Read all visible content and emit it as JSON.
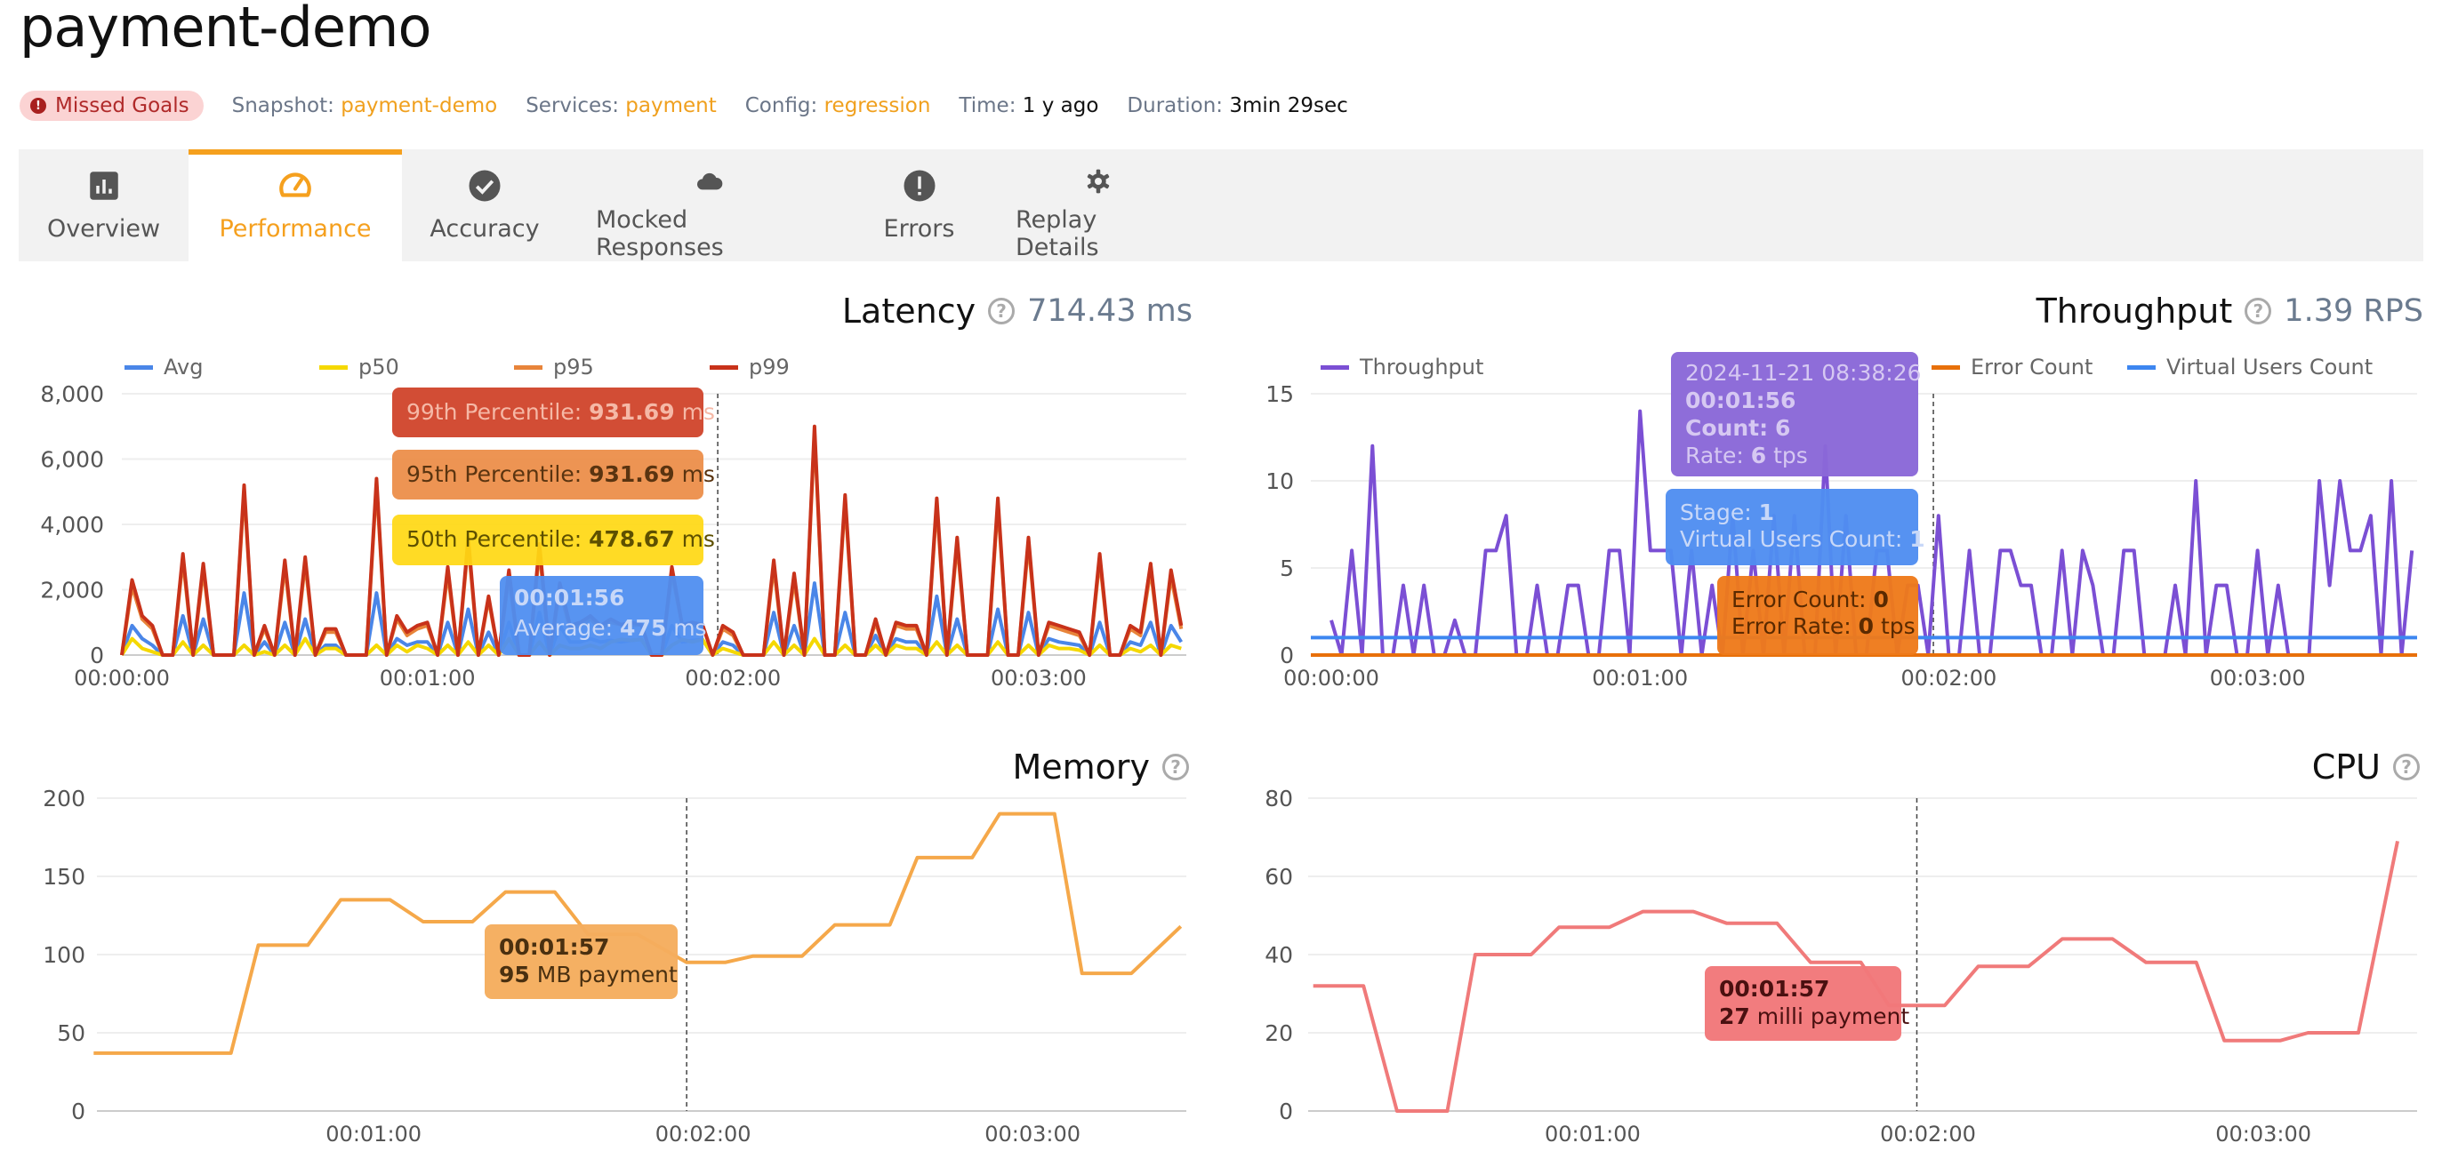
{
  "title": "payment-demo",
  "meta": {
    "status_badge": "Missed Goals",
    "snapshot_label": "Snapshot:",
    "snapshot": "payment-demo",
    "services_label": "Services:",
    "services": "payment",
    "config_label": "Config:",
    "config": "regression",
    "time_label": "Time:",
    "time": "1 y ago",
    "duration_label": "Duration:",
    "duration": "3min 29sec"
  },
  "tabs": [
    {
      "label": "Overview",
      "icon": "bar-chart-icon"
    },
    {
      "label": "Performance",
      "icon": "speedometer-icon",
      "active": true
    },
    {
      "label": "Accuracy",
      "icon": "check-circle-icon"
    },
    {
      "label": "Mocked Responses",
      "icon": "cloud-icon"
    },
    {
      "label": "Errors",
      "icon": "error-icon"
    },
    {
      "label": "Replay Details",
      "icon": "gear-icon"
    }
  ],
  "colors": {
    "accent": "#f5a01e",
    "avg": "#4a86e8",
    "p50": "#f5d800",
    "p95": "#e8843a",
    "p99": "#c8321a",
    "throughput": "#7b4fd4",
    "errors": "#e8700a",
    "virtual_users": "#3d86f0",
    "memory": "#f5a84a",
    "cpu": "#f07a7a"
  },
  "latency": {
    "title": "Latency",
    "value": "714.43 ms",
    "tooltip": {
      "p99_label": "99th Percentile:",
      "p99_value": "931.69",
      "p99_unit": "ms",
      "p95_label": "95th Percentile:",
      "p95_value": "931.69",
      "p95_unit": "ms",
      "p50_label": "50th Percentile:",
      "p50_value": "478.67",
      "p50_unit": "ms",
      "time": "00:01:56",
      "avg_label": "Average:",
      "avg_value": "475",
      "avg_unit": "ms"
    }
  },
  "throughput": {
    "title": "Throughput",
    "value": "1.39 RPS",
    "tooltip": {
      "timestamp": "2024-11-21 08:38:26",
      "time": "00:01:56",
      "count_label": "Count:",
      "count": "6",
      "rate_label": "Rate:",
      "rate": "6",
      "rate_unit": "tps",
      "stage_label": "Stage:",
      "stage": "1",
      "vu_label": "Virtual Users Count:",
      "vu": "1",
      "error_count_label": "Error Count:",
      "error_count": "0",
      "error_rate_label": "Error Rate:",
      "error_rate": "0",
      "error_rate_unit": "tps"
    }
  },
  "memory": {
    "title": "Memory",
    "tooltip": {
      "time": "00:01:57",
      "value": "95",
      "unit": "MB payment"
    }
  },
  "cpu": {
    "title": "CPU",
    "tooltip": {
      "time": "00:01:57",
      "value": "27",
      "unit": "milli payment"
    }
  },
  "chart_data": [
    {
      "id": "latency",
      "type": "line",
      "ylim": [
        0,
        8000
      ],
      "yticks": [
        "0",
        "2,000",
        "4,000",
        "6,000",
        "8,000"
      ],
      "xticks": [
        "00:00:00",
        "00:01:00",
        "00:02:00",
        "00:03:00"
      ],
      "legend": "top",
      "series": [
        {
          "name": "Avg",
          "color": "#4a86e8",
          "values": [
            0,
            900,
            500,
            300,
            0,
            0,
            1200,
            0,
            1100,
            0,
            0,
            0,
            1900,
            0,
            400,
            0,
            1000,
            0,
            1100,
            0,
            300,
            300,
            0,
            0,
            0,
            1900,
            0,
            500,
            300,
            400,
            400,
            0,
            1000,
            0,
            1400,
            0,
            700,
            0,
            1000,
            0,
            0,
            1300,
            0,
            900,
            400,
            400,
            500,
            400,
            450,
            400,
            450,
            475,
            0,
            0,
            900,
            400,
            450,
            475,
            0,
            400,
            300,
            0,
            0,
            0,
            1300,
            0,
            900,
            0,
            2200,
            0,
            0,
            1300,
            0,
            0,
            600,
            0,
            500,
            400,
            400,
            0,
            1800,
            0,
            1100,
            0,
            0,
            0,
            1400,
            0,
            0,
            1300,
            0,
            500,
            400,
            350,
            300,
            0,
            1000,
            0,
            0,
            400,
            300,
            1000,
            0,
            900,
            400
          ]
        },
        {
          "name": "p50",
          "color": "#f5d800",
          "values": [
            0,
            500,
            200,
            100,
            0,
            0,
            400,
            0,
            300,
            0,
            0,
            0,
            300,
            0,
            100,
            0,
            300,
            0,
            500,
            0,
            200,
            200,
            0,
            0,
            0,
            300,
            0,
            300,
            100,
            300,
            200,
            0,
            300,
            0,
            400,
            0,
            300,
            0,
            500,
            0,
            0,
            400,
            0,
            300,
            200,
            200,
            300,
            200,
            400,
            478,
            450,
            478,
            0,
            0,
            300,
            478,
            400,
            478,
            0,
            200,
            100,
            0,
            0,
            0,
            400,
            0,
            300,
            0,
            500,
            0,
            0,
            300,
            0,
            0,
            300,
            0,
            300,
            200,
            200,
            0,
            400,
            0,
            300,
            0,
            0,
            0,
            400,
            0,
            0,
            300,
            0,
            300,
            200,
            200,
            150,
            0,
            300,
            0,
            0,
            200,
            100,
            300,
            0,
            300,
            200
          ]
        },
        {
          "name": "p95",
          "color": "#e8843a",
          "values": [
            0,
            2100,
            1100,
            800,
            0,
            0,
            2900,
            0,
            2600,
            0,
            0,
            0,
            5000,
            0,
            800,
            0,
            2700,
            0,
            2800,
            0,
            700,
            700,
            0,
            0,
            0,
            5200,
            0,
            1100,
            600,
            800,
            900,
            0,
            2500,
            0,
            3400,
            0,
            1700,
            0,
            2400,
            0,
            0,
            3200,
            0,
            2000,
            800,
            900,
            1100,
            800,
            1000,
            931,
            900,
            931,
            0,
            0,
            2500,
            931,
            900,
            931,
            0,
            800,
            600,
            0,
            0,
            0,
            2700,
            0,
            2300,
            0,
            6800,
            0,
            0,
            4700,
            0,
            0,
            1000,
            0,
            900,
            800,
            800,
            0,
            4600,
            0,
            3400,
            0,
            0,
            0,
            4600,
            0,
            0,
            3400,
            0,
            900,
            800,
            700,
            600,
            0,
            2900,
            0,
            0,
            800,
            600,
            2600,
            0,
            2400,
            800
          ]
        },
        {
          "name": "p99",
          "color": "#c8321a",
          "values": [
            0,
            2300,
            1200,
            900,
            0,
            0,
            3100,
            0,
            2800,
            0,
            0,
            0,
            5200,
            0,
            900,
            0,
            2900,
            0,
            3000,
            0,
            800,
            800,
            0,
            0,
            0,
            5400,
            0,
            1200,
            700,
            900,
            1000,
            0,
            2700,
            0,
            3600,
            0,
            1800,
            0,
            2600,
            0,
            0,
            3400,
            0,
            2200,
            900,
            1000,
            1200,
            900,
            1100,
            931,
            1000,
            931,
            0,
            0,
            2700,
            931,
            1000,
            931,
            0,
            900,
            700,
            0,
            0,
            0,
            2900,
            0,
            2500,
            0,
            7000,
            0,
            0,
            4900,
            0,
            0,
            1100,
            0,
            1000,
            900,
            900,
            0,
            4800,
            0,
            3600,
            0,
            0,
            0,
            4800,
            0,
            0,
            3600,
            0,
            1000,
            900,
            800,
            700,
            0,
            3100,
            0,
            0,
            900,
            700,
            2800,
            0,
            2600,
            900
          ]
        }
      ]
    },
    {
      "id": "throughput",
      "type": "line",
      "ylim": [
        0,
        15
      ],
      "yticks": [
        "0",
        "5",
        "10",
        "15"
      ],
      "xticks": [
        "00:00:00",
        "00:01:00",
        "00:02:00",
        "00:03:00"
      ],
      "legend": "top",
      "series": [
        {
          "name": "Throughput",
          "color": "#7b4fd4",
          "values": [
            2,
            0,
            6,
            0,
            12,
            0,
            0,
            4,
            0,
            4,
            0,
            0,
            2,
            0,
            0,
            6,
            6,
            8,
            0,
            0,
            4,
            0,
            0,
            4,
            4,
            0,
            0,
            6,
            6,
            0,
            14,
            6,
            6,
            6,
            0,
            6,
            0,
            4,
            0,
            8,
            0,
            6,
            0,
            8,
            0,
            8,
            0,
            0,
            12,
            0,
            8,
            0,
            0,
            6,
            6,
            0,
            4,
            4,
            0,
            8,
            0,
            0,
            6,
            0,
            0,
            6,
            6,
            4,
            4,
            0,
            0,
            6,
            0,
            6,
            4,
            0,
            0,
            6,
            6,
            0,
            0,
            0,
            4,
            0,
            10,
            0,
            4,
            4,
            0,
            0,
            6,
            0,
            4,
            0,
            0,
            0,
            10,
            4,
            10,
            6,
            6,
            8,
            0,
            10,
            0,
            6
          ]
        },
        {
          "name": "Error Count",
          "color": "#e8700a",
          "values": [
            0,
            0
          ]
        },
        {
          "name": "Virtual Users Count",
          "color": "#3d86f0",
          "values": [
            1,
            1
          ]
        }
      ]
    },
    {
      "id": "memory",
      "type": "line",
      "ylim": [
        0,
        200
      ],
      "yticks": [
        "0",
        "50",
        "100",
        "150",
        "200"
      ],
      "xticks": [
        "00:01:00",
        "00:02:00",
        "00:03:00"
      ],
      "series": [
        {
          "color": "#f5a84a",
          "points": [
            [
              "00:00:09",
              37
            ],
            [
              "00:00:34",
              37
            ],
            [
              "00:00:39",
              106
            ],
            [
              "00:00:48",
              106
            ],
            [
              "00:00:54",
              135
            ],
            [
              "00:01:03",
              135
            ],
            [
              "00:01:09",
              121
            ],
            [
              "00:01:18",
              121
            ],
            [
              "00:01:24",
              140
            ],
            [
              "00:01:33",
              140
            ],
            [
              "00:01:39",
              113
            ],
            [
              "00:01:48",
              113
            ],
            [
              "00:01:57",
              95
            ],
            [
              "00:02:04",
              95
            ],
            [
              "00:02:09",
              99
            ],
            [
              "00:02:18",
              99
            ],
            [
              "00:02:24",
              119
            ],
            [
              "00:02:34",
              119
            ],
            [
              "00:02:39",
              162
            ],
            [
              "00:02:49",
              162
            ],
            [
              "00:02:54",
              190
            ],
            [
              "00:03:04",
              190
            ],
            [
              "00:03:09",
              88
            ],
            [
              "00:03:18",
              88
            ],
            [
              "00:03:27",
              118
            ]
          ]
        }
      ]
    },
    {
      "id": "cpu",
      "type": "line",
      "ylim": [
        0,
        80
      ],
      "yticks": [
        "0",
        "20",
        "40",
        "60",
        "80"
      ],
      "xticks": [
        "00:01:00",
        "00:02:00",
        "00:03:00"
      ],
      "series": [
        {
          "color": "#f07a7a",
          "points": [
            [
              "00:00:10",
              32
            ],
            [
              "00:00:19",
              32
            ],
            [
              "00:00:25",
              0
            ],
            [
              "00:00:34",
              0
            ],
            [
              "00:00:39",
              40
            ],
            [
              "00:00:49",
              40
            ],
            [
              "00:00:54",
              47
            ],
            [
              "00:01:03",
              47
            ],
            [
              "00:01:09",
              51
            ],
            [
              "00:01:18",
              51
            ],
            [
              "00:01:24",
              48
            ],
            [
              "00:01:33",
              48
            ],
            [
              "00:01:39",
              38
            ],
            [
              "00:01:48",
              38
            ],
            [
              "00:01:53",
              27
            ],
            [
              "00:01:57",
              27
            ],
            [
              "00:02:03",
              27
            ],
            [
              "00:02:09",
              37
            ],
            [
              "00:02:18",
              37
            ],
            [
              "00:02:24",
              44
            ],
            [
              "00:02:33",
              44
            ],
            [
              "00:02:39",
              38
            ],
            [
              "00:02:48",
              38
            ],
            [
              "00:02:53",
              18
            ],
            [
              "00:03:03",
              18
            ],
            [
              "00:03:08",
              20
            ],
            [
              "00:03:17",
              20
            ],
            [
              "00:03:24",
              69
            ]
          ]
        }
      ]
    }
  ]
}
